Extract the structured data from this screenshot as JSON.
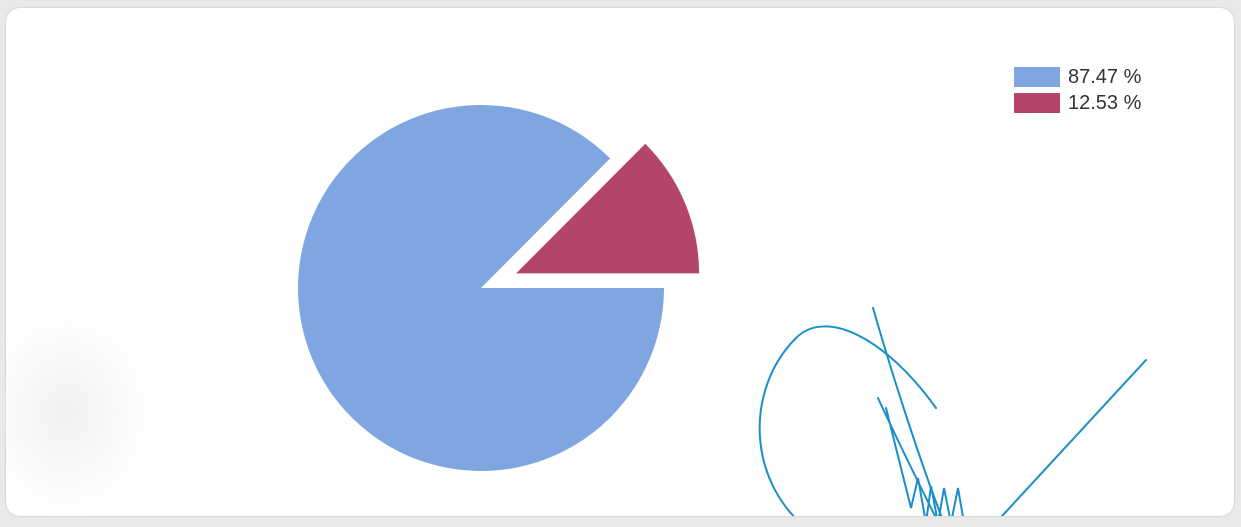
{
  "chart_data": {
    "type": "pie",
    "title": "",
    "slices": [
      {
        "label": "87.47 %",
        "value": 87.47,
        "color": "#7fa6e1"
      },
      {
        "label": "12.53 %",
        "value": 12.53,
        "color": "#b5446a"
      }
    ],
    "exploded_slice": 1,
    "legend_position": "top-right"
  },
  "signature": {
    "color": "#1a8fc9",
    "description_kind": "handwritten-signature"
  }
}
